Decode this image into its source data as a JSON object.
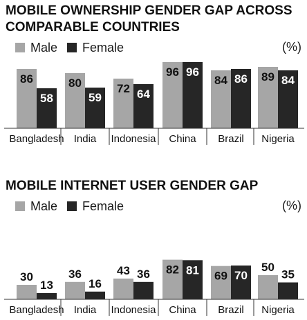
{
  "chart_data": [
    {
      "type": "bar",
      "title": "MOBILE OWNERSHIP GENDER GAP ACROSS COMPARABLE COUNTRIES",
      "unit": "(%)",
      "categories": [
        "Bangladesh",
        "India",
        "Indonesia",
        "China",
        "Brazil",
        "Nigeria"
      ],
      "series": [
        {
          "name": "Male",
          "color": "#a6a6a6",
          "values": [
            86,
            80,
            72,
            96,
            84,
            89
          ]
        },
        {
          "name": "Female",
          "color": "#262626",
          "values": [
            58,
            59,
            64,
            96,
            86,
            84
          ]
        }
      ],
      "ylim": [
        0,
        100
      ],
      "grid": false,
      "legend": "top-left"
    },
    {
      "type": "bar",
      "title": "MOBILE INTERNET USER GENDER GAP",
      "unit": "(%)",
      "categories": [
        "Bangladesh",
        "India",
        "Indonesia",
        "China",
        "Brazil",
        "Nigeria"
      ],
      "series": [
        {
          "name": "Male",
          "color": "#a6a6a6",
          "values": [
            30,
            36,
            43,
            82,
            69,
            50
          ]
        },
        {
          "name": "Female",
          "color": "#262626",
          "values": [
            13,
            16,
            36,
            81,
            70,
            35
          ]
        }
      ],
      "ylim": [
        0,
        100
      ],
      "grid": false,
      "legend": "top-left"
    }
  ]
}
